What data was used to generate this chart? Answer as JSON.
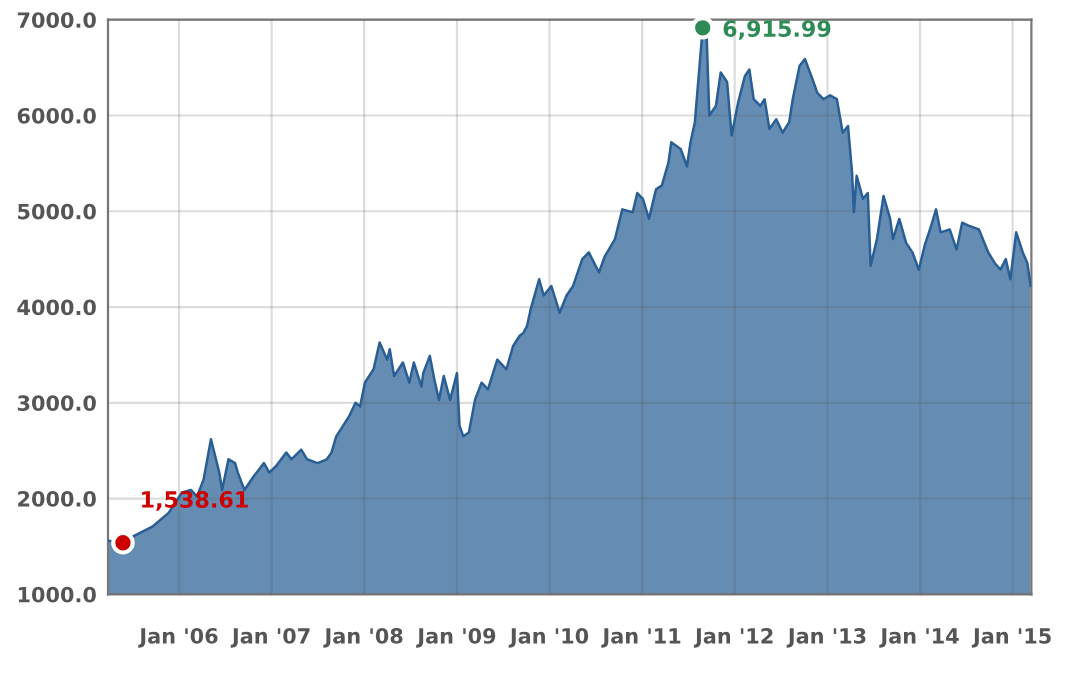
{
  "chart_data": {
    "type": "area",
    "x": [
      "2005-03-27",
      "2005-05-25",
      "2005-07-08",
      "2005-09-20",
      "2005-11-21",
      "2005-12-09",
      "2006-01-11",
      "2006-02-17",
      "2006-03-13",
      "2006-04-08",
      "2006-05-07",
      "2006-06-09",
      "2006-06-20",
      "2006-07-15",
      "2006-08-10",
      "2006-08-21",
      "2006-09-16",
      "2006-10-22",
      "2006-12-02",
      "2006-12-23",
      "2007-01-19",
      "2007-02-28",
      "2007-03-20",
      "2007-04-28",
      "2007-05-21",
      "2007-07-01",
      "2007-08-07",
      "2007-08-25",
      "2007-09-13",
      "2007-11-03",
      "2007-11-28",
      "2007-12-16",
      "2008-01-04",
      "2008-02-07",
      "2008-03-02",
      "2008-04-01",
      "2008-04-11",
      "2008-04-28",
      "2008-06-02",
      "2008-06-27",
      "2008-07-15",
      "2008-08-14",
      "2008-08-21",
      "2008-09-16",
      "2008-10-04",
      "2008-10-22",
      "2008-11-10",
      "2008-12-05",
      "2009-01-01",
      "2009-01-11",
      "2009-01-26",
      "2009-02-17",
      "2009-03-13",
      "2009-04-08",
      "2009-05-03",
      "2009-06-09",
      "2009-07-15",
      "2009-08-10",
      "2009-09-05",
      "2009-09-20",
      "2009-10-04",
      "2009-10-19",
      "2009-11-21",
      "2009-12-09",
      "2010-01-08",
      "2010-02-10",
      "2010-03-09",
      "2010-04-04",
      "2010-05-10",
      "2010-06-05",
      "2010-07-15",
      "2010-08-07",
      "2010-09-16",
      "2010-10-15",
      "2010-11-25",
      "2010-12-13",
      "2011-01-04",
      "2011-01-28",
      "2011-02-25",
      "2011-03-20",
      "2011-04-15",
      "2011-04-26",
      "2011-06-02",
      "2011-06-27",
      "2011-07-11",
      "2011-07-28",
      "2011-08-28",
      "2011-09-13",
      "2011-09-23",
      "2011-10-19",
      "2011-11-07",
      "2011-12-02",
      "2011-12-20",
      "2012-01-15",
      "2012-02-10",
      "2012-02-28",
      "2012-03-16",
      "2012-04-11",
      "2012-04-28",
      "2012-05-17",
      "2012-06-13",
      "2012-07-08",
      "2012-08-03",
      "2012-08-17",
      "2012-09-13",
      "2012-10-04",
      "2012-11-03",
      "2012-11-21",
      "2012-12-16",
      "2013-01-11",
      "2013-02-07",
      "2013-03-02",
      "2013-03-23",
      "2013-04-08",
      "2013-04-15",
      "2013-04-26",
      "2013-05-21",
      "2013-06-09",
      "2013-06-20",
      "2013-07-15",
      "2013-08-10",
      "2013-09-05",
      "2013-09-16",
      "2013-10-11",
      "2013-11-07",
      "2013-12-02",
      "2013-12-27",
      "2014-01-19",
      "2014-02-14",
      "2014-03-05",
      "2014-03-23",
      "2014-04-28",
      "2014-05-25",
      "2014-06-16",
      "2014-07-11",
      "2014-08-21",
      "2014-09-27",
      "2014-10-22",
      "2014-11-14",
      "2014-12-05",
      "2014-12-23",
      "2015-01-15",
      "2015-02-10",
      "2015-02-28",
      "2015-03-13"
    ],
    "series": [
      {
        "color": "#2a5f95",
        "values": [
          1560,
          1538.61,
          1610,
          1710,
          1850,
          1920,
          2060,
          2090,
          2020,
          2200,
          2620,
          2270,
          2090,
          2410,
          2370,
          2270,
          2090,
          2230,
          2370,
          2270,
          2340,
          2480,
          2410,
          2510,
          2410,
          2370,
          2410,
          2480,
          2650,
          2860,
          3000,
          2960,
          3210,
          3350,
          3630,
          3450,
          3560,
          3280,
          3420,
          3210,
          3420,
          3170,
          3310,
          3490,
          3240,
          3030,
          3280,
          3030,
          3310,
          2760,
          2650,
          2690,
          3030,
          3210,
          3140,
          3450,
          3350,
          3590,
          3700,
          3730,
          3800,
          3980,
          4290,
          4120,
          4220,
          3940,
          4120,
          4220,
          4500,
          4570,
          4360,
          4530,
          4710,
          5020,
          4990,
          5190,
          5130,
          4920,
          5230,
          5270,
          5510,
          5720,
          5650,
          5470,
          5720,
          5930,
          6915.99,
          6800,
          6000,
          6100,
          6450,
          6350,
          5790,
          6140,
          6410,
          6480,
          6170,
          6100,
          6170,
          5860,
          5960,
          5820,
          5930,
          6170,
          6520,
          6590,
          6380,
          6240,
          6170,
          6210,
          6170,
          5820,
          5890,
          5400,
          4990,
          5370,
          5130,
          5190,
          4430,
          4710,
          5160,
          4920,
          4710,
          4920,
          4670,
          4570,
          4390,
          4640,
          4850,
          5020,
          4780,
          4810,
          4600,
          4880,
          4850,
          4810,
          4570,
          4460,
          4390,
          4500,
          4290,
          4780,
          4570,
          4460,
          4220
        ]
      }
    ],
    "xlim": [
      "2005-03-27",
      "2015-03-16"
    ],
    "xticks": [
      {
        "value": "2006-01",
        "label": "Jan '06"
      },
      {
        "value": "2007-01",
        "label": "Jan '07"
      },
      {
        "value": "2008-01",
        "label": "Jan '08"
      },
      {
        "value": "2009-01",
        "label": "Jan '09"
      },
      {
        "value": "2010-01",
        "label": "Jan '10"
      },
      {
        "value": "2011-01",
        "label": "Jan '11"
      },
      {
        "value": "2012-01",
        "label": "Jan '12"
      },
      {
        "value": "2013-01",
        "label": "Jan '13"
      },
      {
        "value": "2014-01",
        "label": "Jan '14"
      },
      {
        "value": "2015-01",
        "label": "Jan '15"
      }
    ],
    "ylim": [
      1000,
      7000
    ],
    "yticks": [
      {
        "value": 1000,
        "label": "1000.0"
      },
      {
        "value": 2000,
        "label": "2000.0"
      },
      {
        "value": 3000,
        "label": "3000.0"
      },
      {
        "value": 4000,
        "label": "4000.0"
      },
      {
        "value": 5000,
        "label": "5000.0"
      },
      {
        "value": 6000,
        "label": "6000.0"
      },
      {
        "value": 7000,
        "label": "7000.0"
      }
    ],
    "annotations": [
      {
        "text": "1,538.61",
        "x": "2005-05-25",
        "y": 1538.61
      },
      {
        "text": "6,915.99",
        "x": "2011-08-28",
        "y": 6915.99
      }
    ],
    "grid": true,
    "marker": "none"
  }
}
